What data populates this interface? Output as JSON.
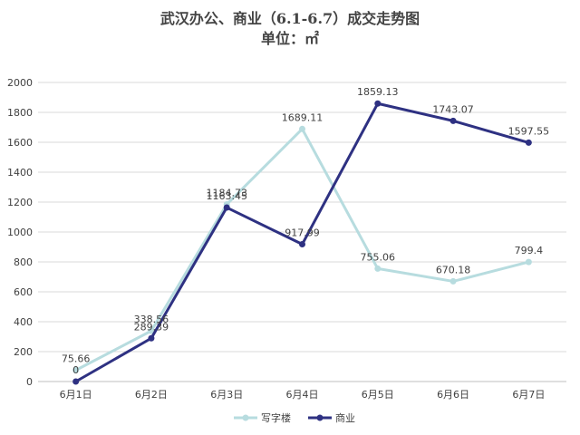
{
  "chart_data": {
    "type": "line",
    "title": "武汉办公、商业（6.1-6.7）成交走势图",
    "subtitle": "单位：㎡",
    "xlabel": "",
    "ylabel": "",
    "categories": [
      "6月1日",
      "6月2日",
      "6月3日",
      "6月4日",
      "6月5日",
      "6月6日",
      "6月7日"
    ],
    "ylim": [
      0,
      2000
    ],
    "yticks": [
      0,
      200,
      400,
      600,
      800,
      1000,
      1200,
      1400,
      1600,
      1800,
      2000
    ],
    "grid": true,
    "legend_position": "bottom",
    "series": [
      {
        "name": "写字楼",
        "color": "#b7dcdf",
        "values": [
          75.66,
          338.56,
          1184.73,
          1689.11,
          755.06,
          670.18,
          799.4
        ],
        "labels": [
          "75.66",
          "338.56",
          "1184.73",
          "1689.11",
          "755.06",
          "670.18",
          "799.4"
        ]
      },
      {
        "name": "商业",
        "color": "#2e3182",
        "values": [
          0,
          289.39,
          1163.45,
          917.99,
          1859.13,
          1743.07,
          1597.55
        ],
        "labels": [
          "0",
          "289.39",
          "1163.45",
          "917.99",
          "1859.13",
          "1743.07",
          "1597.55"
        ]
      }
    ]
  }
}
